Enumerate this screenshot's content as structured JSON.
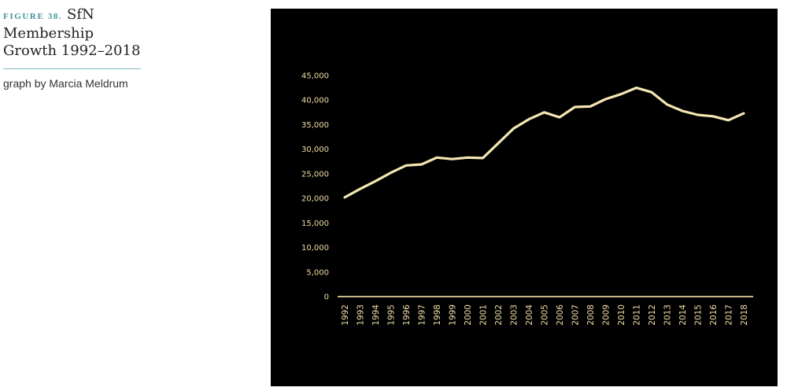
{
  "caption": {
    "figure_label": "FIGURE 38.",
    "title": "SfN Membership Growth 1992–2018",
    "credit": "graph by Marcia Meldrum"
  },
  "colors": {
    "panel_background": "#000000",
    "line": "#f4e7b2",
    "tick_labels": "#f1dfa6",
    "axis": "#c9b98a",
    "accent": "#3f95a0"
  },
  "chart_data": {
    "type": "line",
    "title": "",
    "xlabel": "",
    "ylabel": "",
    "ylim": [
      0,
      45000
    ],
    "yticks": [
      0,
      5000,
      10000,
      15000,
      20000,
      25000,
      30000,
      35000,
      40000,
      45000
    ],
    "ytick_labels": [
      "0",
      "5,000",
      "10,000",
      "15,000",
      "20,000",
      "25,000",
      "30,000",
      "35,000",
      "40,000",
      "45,000"
    ],
    "grid": false,
    "legend": "none",
    "drop_lines": true,
    "categories": [
      "1992",
      "1993",
      "1994",
      "1995",
      "1996",
      "1997",
      "1998",
      "1999",
      "2000",
      "2001",
      "2002",
      "2003",
      "2004",
      "2005",
      "2006",
      "2007",
      "2008",
      "2009",
      "2010",
      "2011",
      "2012",
      "2013",
      "2014",
      "2015",
      "2016",
      "2017",
      "2018"
    ],
    "series": [
      {
        "values": [
          20200,
          21900,
          23500,
          25200,
          26700,
          26900,
          28300,
          28000,
          28300,
          28200,
          31200,
          34200,
          36100,
          37500,
          36500,
          38600,
          38700,
          40200,
          41200,
          42500,
          41600,
          39100,
          37800,
          37000,
          36700,
          35900,
          37300
        ]
      }
    ]
  }
}
